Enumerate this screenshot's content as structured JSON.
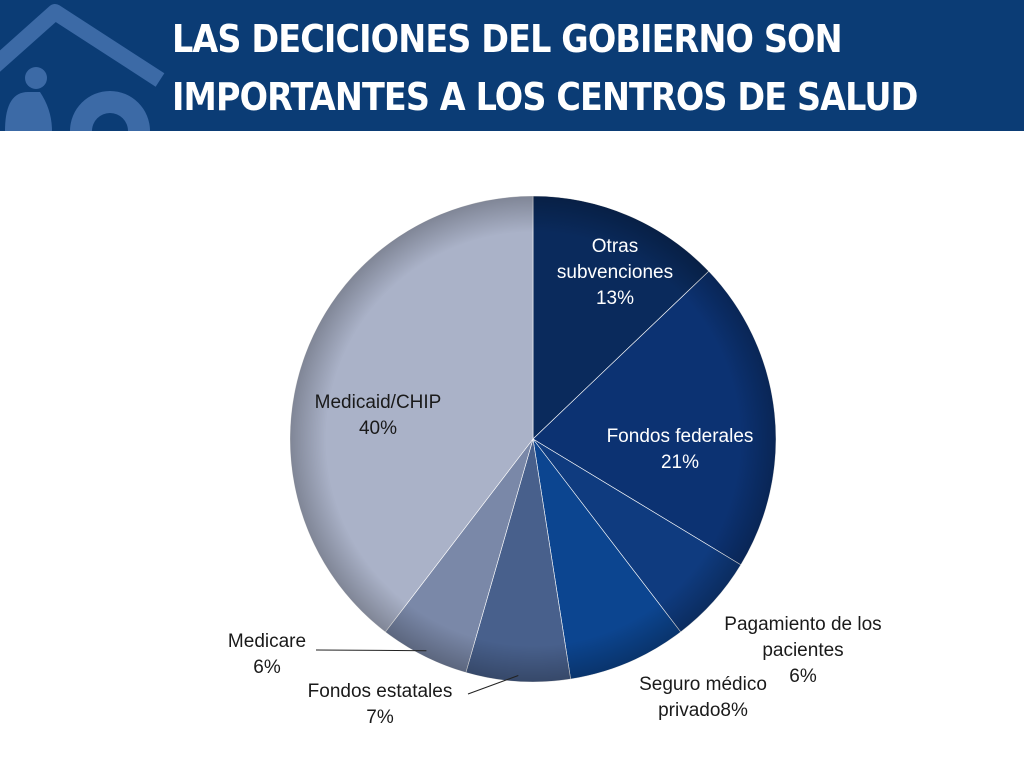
{
  "header": {
    "title_line1": "LAS DECICIONES DEL GOBIERNO SON",
    "title_line2": "IMPORTANTES  A LOS CENTROS DE SALUD",
    "logo_icon": "health-center-house-icon"
  },
  "colors": {
    "header_bg": "#0b3c75",
    "title_text": "#ffffff"
  },
  "chart_data": {
    "type": "pie",
    "title": "",
    "start_angle_deg": 0,
    "direction": "clockwise",
    "slices": [
      {
        "label_lines": [
          "Otras",
          "subvenciones",
          "13%"
        ],
        "value": 13,
        "color": "#0a2a5c",
        "label_color": "#ffffff"
      },
      {
        "label_lines": [
          "Fondos federales",
          "21%"
        ],
        "value": 21,
        "color": "#0c3272",
        "label_color": "#ffffff"
      },
      {
        "label_lines": [
          "Pagamiento de los",
          "pacientes",
          "6%"
        ],
        "value": 6,
        "color": "#0f3b7f",
        "label_color": "#1a1a1a"
      },
      {
        "label_lines": [
          "Seguro médico",
          "privado8%"
        ],
        "value": 8,
        "color": "#0c4590",
        "label_color": "#1a1a1a"
      },
      {
        "label_lines": [
          "Fondos estatales",
          "7%"
        ],
        "value": 7,
        "color": "#48608c",
        "label_color": "#1a1a1a"
      },
      {
        "label_lines": [
          "Medicare",
          "6%"
        ],
        "value": 6,
        "color": "#7a88a8",
        "label_color": "#1a1a1a"
      },
      {
        "label_lines": [
          "Medicaid/CHIP",
          "40%"
        ],
        "value": 40,
        "color": "#aab2c8",
        "label_color": "#1a1a1a"
      }
    ]
  }
}
